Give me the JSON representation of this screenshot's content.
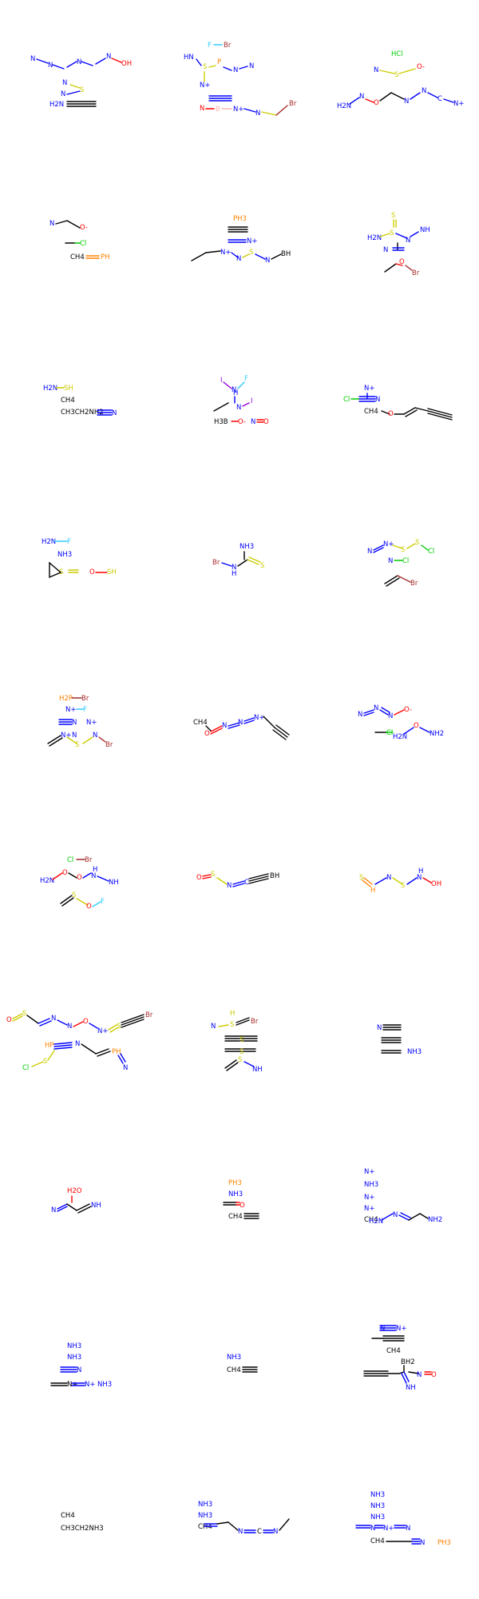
{
  "grid": {
    "rows": 10,
    "cols": 3
  },
  "colors": {
    "carbon": "#000000",
    "nitrogen": "#0000ff",
    "oxygen": "#ff0000",
    "sulfur": "#cccc00",
    "phosphorus": "#ff8000",
    "fluorine": "#33ccff",
    "chlorine": "#00cc00",
    "bromine": "#a62929",
    "iodine": "#9400d3",
    "boron": "#ffb5b5"
  },
  "molecules": [
    {
      "labels": [
        "N",
        "N",
        "N",
        "N",
        "OH",
        "N",
        "S",
        "N",
        "H2N"
      ]
    },
    {
      "labels": [
        "F",
        "Br",
        "HN",
        "S",
        "P",
        "N",
        "N",
        "N+",
        "N",
        "B",
        "N+",
        "N",
        "Br"
      ]
    },
    {
      "labels": [
        "HCl",
        "N",
        "S",
        "O-",
        "H2N",
        "N",
        "O",
        "N",
        "N",
        "C",
        "N+"
      ]
    },
    {
      "labels": [
        "N",
        "O-",
        "Cl",
        "CH4",
        "PH"
      ]
    },
    {
      "labels": [
        "PH3",
        "N+",
        "N+",
        "N",
        "S",
        "N",
        "BH"
      ]
    },
    {
      "labels": [
        "S",
        "H2N",
        "S",
        "N",
        "NH",
        "N",
        "O",
        "Br"
      ]
    },
    {
      "labels": [
        "H2N",
        "SH",
        "CH4",
        "CH3CH2NH2",
        "N"
      ]
    },
    {
      "labels": [
        "I",
        "F",
        "N",
        "H",
        "N",
        "I",
        "H3B",
        "O-",
        "N",
        "O"
      ]
    },
    {
      "labels": [
        "N+",
        "Cl",
        "N",
        "CH4",
        "O"
      ]
    },
    {
      "labels": [
        "H2N",
        "F",
        "NH3",
        "S",
        "O",
        "SH"
      ]
    },
    {
      "labels": [
        "NH3",
        "Br",
        "N",
        "H",
        "S"
      ]
    },
    {
      "labels": [
        "N",
        "N+",
        "S",
        "S",
        "Cl",
        "N",
        "Cl",
        "Br"
      ]
    },
    {
      "labels": [
        "H2P",
        "Br",
        "N+",
        "F",
        "N",
        "N+",
        "N+",
        "N",
        "S",
        "N",
        "Br"
      ]
    },
    {
      "labels": [
        "CH4",
        "O",
        "N",
        "N",
        "N+"
      ]
    },
    {
      "labels": [
        "N",
        "N",
        "N",
        "O-",
        "Cl",
        "H2N",
        "O",
        "NH2"
      ]
    },
    {
      "labels": [
        "Cl",
        "Br",
        "H2N",
        "O",
        "O",
        "N",
        "H",
        "NH",
        "S",
        "O",
        "F"
      ]
    },
    {
      "labels": [
        "O",
        "S",
        "N",
        "C",
        "BH"
      ]
    },
    {
      "labels": [
        "S",
        "H",
        "N",
        "S",
        "N",
        "H",
        "OH"
      ]
    },
    {
      "labels": [
        "O",
        "S",
        "N",
        "N",
        "O",
        "N+",
        "S",
        "Br",
        "HP",
        "N",
        "PH",
        "Cl",
        "S",
        "N"
      ]
    },
    {
      "labels": [
        "H",
        "S",
        "N",
        "Br",
        "S",
        "S",
        "S",
        "NH"
      ]
    },
    {
      "labels": [
        "N",
        "NH3"
      ]
    },
    {
      "labels": [
        "H2O",
        "N",
        "NH"
      ]
    },
    {
      "labels": [
        "PH3",
        "NH3",
        "O",
        "CH4"
      ]
    },
    {
      "labels": [
        "N+",
        "NH3",
        "N+",
        "N+",
        "CH4",
        "H2N",
        "N",
        "NH2"
      ]
    },
    {
      "labels": [
        "NH3",
        "NH3",
        "N",
        "N+",
        "NH3"
      ]
    },
    {
      "labels": [
        "NH3",
        "CH4"
      ]
    },
    {
      "labels": [
        "N",
        "N+",
        "CH4",
        "BH2",
        "N",
        "NH",
        "O"
      ]
    },
    {
      "labels": [
        "CH4",
        "CH3CH2NH3"
      ]
    },
    {
      "labels": [
        "NH3",
        "NH3",
        "CH4",
        "N",
        "C",
        "N"
      ]
    },
    {
      "labels": [
        "NH3",
        "NH3",
        "NH3",
        "N",
        "N+",
        "N",
        "CH4",
        "N",
        "PH3"
      ]
    }
  ]
}
